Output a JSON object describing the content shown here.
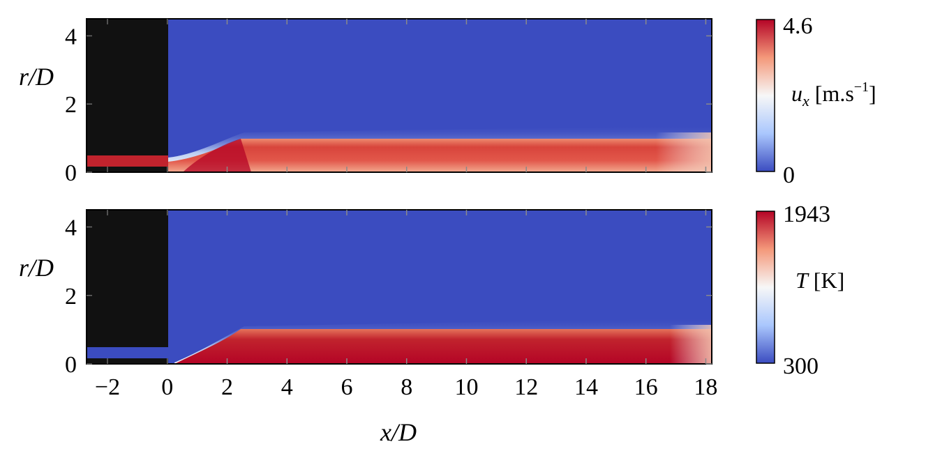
{
  "chart_data": [
    {
      "type": "heatmap",
      "field": "axial velocity",
      "xlim": [
        -2.7,
        18.2
      ],
      "ylim": [
        0,
        4.5
      ],
      "x_ticks": [
        "−2",
        "0",
        "2",
        "4",
        "6",
        "8",
        "10",
        "12",
        "14",
        "16",
        "18"
      ],
      "y_ticks": [
        "0",
        "2",
        "4"
      ],
      "xlabel": "x/D",
      "ylabel": "r/D",
      "colorbar": {
        "label_main": "u",
        "label_sub": "x",
        "label_unit": " [m.s",
        "label_exp": "−1",
        "label_end": "]",
        "min": "0",
        "max": "4.6",
        "colormap": [
          "#3b4cc0",
          "#aac7fd",
          "#f7f7f7",
          "#f4987a",
          "#b40426"
        ]
      },
      "features": {
        "nozzle_wall_region": {
          "x": [
            -2.7,
            0
          ],
          "r": [
            0.55,
            4.5
          ]
        },
        "jet_layer": {
          "x": [
            -2.7,
            0
          ],
          "r": [
            0.2,
            0.5
          ]
        },
        "shear_layer_radius": 1.1,
        "ambient_color": "#3b4cc0"
      }
    },
    {
      "type": "heatmap",
      "field": "temperature",
      "xlim": [
        -2.7,
        18.2
      ],
      "ylim": [
        0,
        4.5
      ],
      "x_ticks": [
        "−2",
        "0",
        "2",
        "4",
        "6",
        "8",
        "10",
        "12",
        "14",
        "16",
        "18"
      ],
      "y_ticks": [
        "0",
        "2",
        "4"
      ],
      "xlabel": "x/D",
      "ylabel": "r/D",
      "colorbar": {
        "label_main": "T",
        "label_unit": " [K]",
        "min": "300",
        "max": "1943",
        "colormap": [
          "#3b4cc0",
          "#aac7fd",
          "#f7f7f7",
          "#f4987a",
          "#b40426"
        ]
      },
      "features": {
        "nozzle_wall_region": {
          "x": [
            -2.7,
            0
          ],
          "r": [
            0.55,
            4.5
          ]
        },
        "shear_layer_radius": 1.1,
        "ambient_color": "#3b4cc0"
      }
    }
  ]
}
